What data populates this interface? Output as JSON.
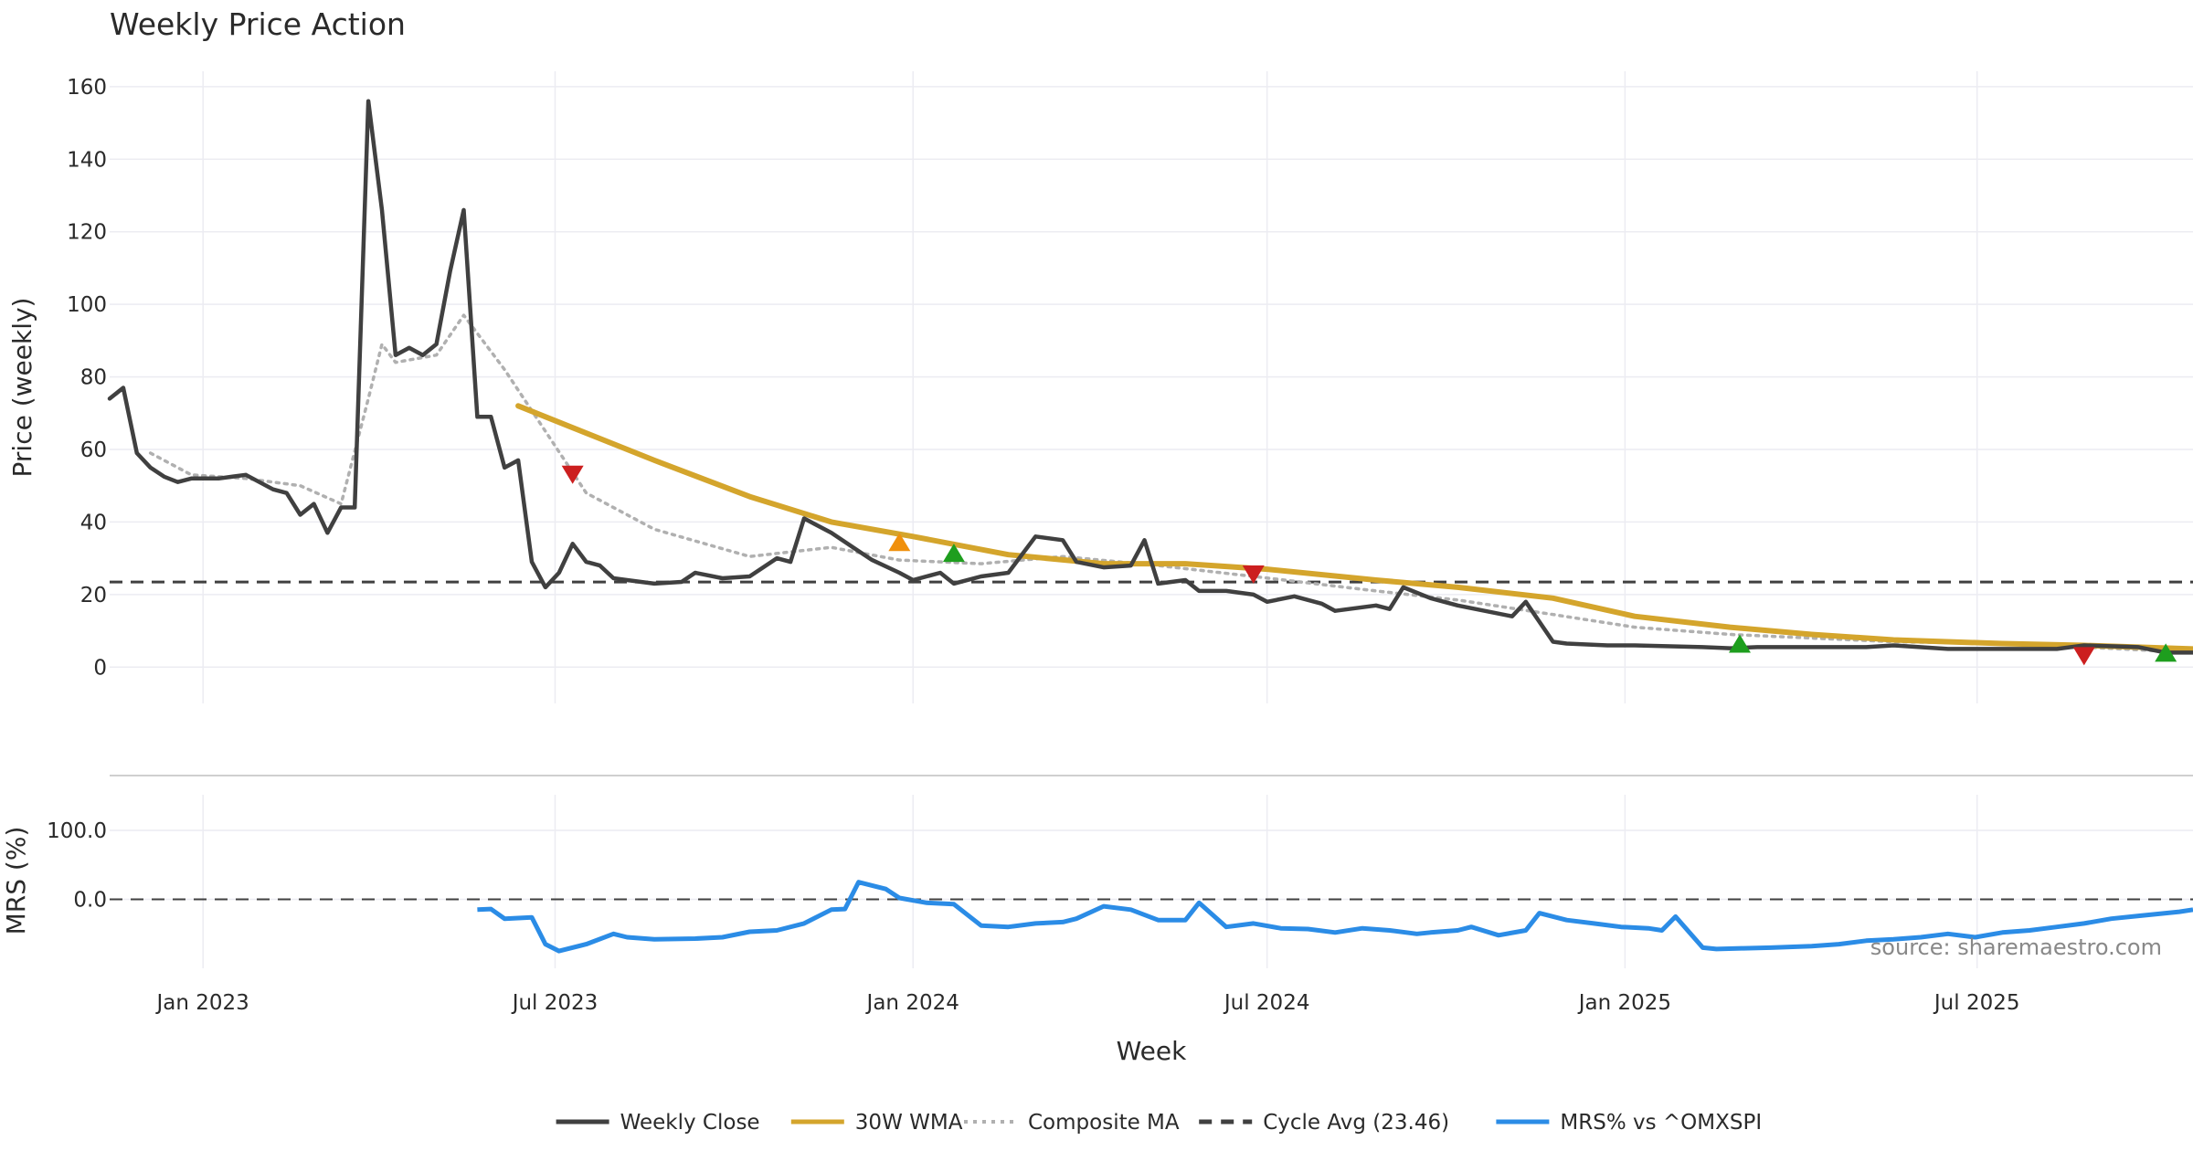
{
  "chart_data": {
    "type": "line",
    "title": "Weekly Price Action",
    "xlabel": "Week",
    "source": "source: sharemaestro.com",
    "x_ticks": [
      "Jan 2023",
      "Jul 2023",
      "Jan 2024",
      "Jul 2024",
      "Jan 2025",
      "Jul 2025"
    ],
    "x_start": "2022-11-14",
    "x_end": "2025-10-20",
    "price_panel": {
      "ylabel": "Price (weekly)",
      "ylim": [
        -10,
        165
      ],
      "y_ticks": [
        0,
        20,
        40,
        60,
        80,
        100,
        120,
        140,
        160
      ],
      "cycle_avg": 23.46
    },
    "mrs_panel": {
      "ylabel": "MRS (%)",
      "ylim": [
        -100,
        165
      ],
      "y_ticks": [
        "0.0",
        "100.0"
      ],
      "y_tick_values": [
        0,
        100
      ]
    },
    "legend": [
      {
        "label": "Weekly Close",
        "color": "#404040",
        "style": "solid"
      },
      {
        "label": "30W WMA",
        "color": "#d4a52c",
        "style": "solid"
      },
      {
        "label": "Composite MA",
        "color": "#b0b0b0",
        "style": "dotted"
      },
      {
        "label": "Cycle Avg (23.46)",
        "color": "#404040",
        "style": "dashed"
      },
      {
        "label": "MRS% vs ^OMXSPI",
        "color": "#2b8ce6",
        "style": "solid"
      }
    ],
    "series": [
      {
        "name": "Weekly Close",
        "color": "#404040",
        "points": [
          [
            "2022-11-14",
            74
          ],
          [
            "2022-11-21",
            77
          ],
          [
            "2022-11-28",
            59
          ],
          [
            "2022-12-05",
            55
          ],
          [
            "2022-12-12",
            52.5
          ],
          [
            "2022-12-19",
            51
          ],
          [
            "2022-12-26",
            52
          ],
          [
            "2023-01-09",
            52
          ],
          [
            "2023-01-23",
            53
          ],
          [
            "2023-02-06",
            49
          ],
          [
            "2023-02-13",
            48
          ],
          [
            "2023-02-20",
            42
          ],
          [
            "2023-02-27",
            45
          ],
          [
            "2023-03-06",
            37
          ],
          [
            "2023-03-13",
            44
          ],
          [
            "2023-03-20",
            44
          ],
          [
            "2023-03-27",
            156
          ],
          [
            "2023-04-03",
            126
          ],
          [
            "2023-04-10",
            86
          ],
          [
            "2023-04-17",
            88
          ],
          [
            "2023-04-24",
            86
          ],
          [
            "2023-05-01",
            89
          ],
          [
            "2023-05-08",
            109
          ],
          [
            "2023-05-15",
            126
          ],
          [
            "2023-05-22",
            69
          ],
          [
            "2023-05-29",
            69
          ],
          [
            "2023-06-05",
            55
          ],
          [
            "2023-06-12",
            57
          ],
          [
            "2023-06-19",
            29
          ],
          [
            "2023-06-26",
            22
          ],
          [
            "2023-07-03",
            26
          ],
          [
            "2023-07-10",
            34
          ],
          [
            "2023-07-17",
            29
          ],
          [
            "2023-07-24",
            28
          ],
          [
            "2023-07-31",
            24.5
          ],
          [
            "2023-08-07",
            24
          ],
          [
            "2023-08-21",
            23
          ],
          [
            "2023-09-04",
            23.5
          ],
          [
            "2023-09-11",
            26
          ],
          [
            "2023-09-25",
            24.5
          ],
          [
            "2023-10-09",
            25
          ],
          [
            "2023-10-23",
            30
          ],
          [
            "2023-10-30",
            29
          ],
          [
            "2023-11-06",
            41
          ],
          [
            "2023-11-20",
            37
          ],
          [
            "2023-12-04",
            32
          ],
          [
            "2023-12-11",
            29.5
          ],
          [
            "2023-12-25",
            26
          ],
          [
            "2024-01-01",
            24
          ],
          [
            "2024-01-15",
            26
          ],
          [
            "2024-01-22",
            23
          ],
          [
            "2024-02-05",
            25
          ],
          [
            "2024-02-19",
            26
          ],
          [
            "2024-03-04",
            36
          ],
          [
            "2024-03-18",
            35
          ],
          [
            "2024-03-25",
            29
          ],
          [
            "2024-04-08",
            27.5
          ],
          [
            "2024-04-22",
            28
          ],
          [
            "2024-04-29",
            35
          ],
          [
            "2024-05-06",
            23
          ],
          [
            "2024-05-20",
            24
          ],
          [
            "2024-05-27",
            21
          ],
          [
            "2024-06-10",
            21
          ],
          [
            "2024-06-24",
            20
          ],
          [
            "2024-07-01",
            18
          ],
          [
            "2024-07-15",
            19.5
          ],
          [
            "2024-07-29",
            17.5
          ],
          [
            "2024-08-05",
            15.5
          ],
          [
            "2024-08-26",
            17
          ],
          [
            "2024-09-02",
            16
          ],
          [
            "2024-09-09",
            22
          ],
          [
            "2024-09-23",
            19
          ],
          [
            "2024-10-07",
            17
          ],
          [
            "2024-11-04",
            14
          ],
          [
            "2024-11-11",
            18
          ],
          [
            "2024-11-25",
            7
          ],
          [
            "2024-12-02",
            6.5
          ],
          [
            "2024-12-23",
            6
          ],
          [
            "2025-01-06",
            6
          ],
          [
            "2025-02-10",
            5.5
          ],
          [
            "2025-02-24",
            5.2
          ],
          [
            "2025-03-10",
            5.5
          ],
          [
            "2025-04-07",
            5.5
          ],
          [
            "2025-05-05",
            5.5
          ],
          [
            "2025-05-19",
            6
          ],
          [
            "2025-06-16",
            5
          ],
          [
            "2025-07-14",
            5
          ],
          [
            "2025-08-11",
            5
          ],
          [
            "2025-08-25",
            6
          ],
          [
            "2025-09-22",
            5.5
          ],
          [
            "2025-10-06",
            4
          ],
          [
            "2025-10-20",
            4
          ]
        ]
      },
      {
        "name": "30W WMA",
        "color": "#d4a52c",
        "points": [
          [
            "2023-06-12",
            72
          ],
          [
            "2023-07-10",
            66
          ],
          [
            "2023-08-21",
            57
          ],
          [
            "2023-10-09",
            47
          ],
          [
            "2023-11-20",
            40
          ],
          [
            "2024-01-01",
            36
          ],
          [
            "2024-02-19",
            31
          ],
          [
            "2024-04-08",
            28.5
          ],
          [
            "2024-05-20",
            28.5
          ],
          [
            "2024-07-01",
            27
          ],
          [
            "2024-08-26",
            24
          ],
          [
            "2024-10-07",
            22
          ],
          [
            "2024-11-25",
            19
          ],
          [
            "2025-01-06",
            14
          ],
          [
            "2025-02-24",
            11
          ],
          [
            "2025-04-07",
            9
          ],
          [
            "2025-05-19",
            7.5
          ],
          [
            "2025-07-14",
            6.5
          ],
          [
            "2025-08-25",
            6
          ],
          [
            "2025-10-20",
            5
          ]
        ]
      },
      {
        "name": "Composite MA",
        "color": "#b0b0b0",
        "points": [
          [
            "2022-12-05",
            59
          ],
          [
            "2022-12-26",
            53
          ],
          [
            "2023-01-23",
            52
          ],
          [
            "2023-02-20",
            50
          ],
          [
            "2023-03-13",
            45
          ],
          [
            "2023-03-27",
            74
          ],
          [
            "2023-04-03",
            89
          ],
          [
            "2023-04-10",
            84
          ],
          [
            "2023-05-01",
            86
          ],
          [
            "2023-05-15",
            97
          ],
          [
            "2023-06-05",
            82
          ],
          [
            "2023-06-26",
            65
          ],
          [
            "2023-07-17",
            48
          ],
          [
            "2023-08-21",
            38
          ],
          [
            "2023-10-09",
            30.5
          ],
          [
            "2023-11-20",
            33
          ],
          [
            "2023-12-25",
            29.5
          ],
          [
            "2024-02-05",
            28.5
          ],
          [
            "2024-03-18",
            30.5
          ],
          [
            "2024-05-06",
            28
          ],
          [
            "2024-06-24",
            25
          ],
          [
            "2024-08-26",
            21
          ],
          [
            "2024-10-07",
            18.5
          ],
          [
            "2024-11-25",
            14.5
          ],
          [
            "2025-01-06",
            11
          ],
          [
            "2025-02-24",
            9
          ],
          [
            "2025-04-07",
            8
          ],
          [
            "2025-05-19",
            7
          ],
          [
            "2025-07-14",
            6.5
          ],
          [
            "2025-08-25",
            5.5
          ],
          [
            "2025-10-20",
            4
          ]
        ]
      }
    ],
    "signals": [
      {
        "date": "2023-07-10",
        "value": 53,
        "direction": "down",
        "color": "#cc1f1f"
      },
      {
        "date": "2023-12-25",
        "value": 34.5,
        "direction": "up",
        "color": "#f0900c"
      },
      {
        "date": "2024-01-22",
        "value": 31.5,
        "direction": "up",
        "color": "#1e9e1e"
      },
      {
        "date": "2024-06-24",
        "value": 25.5,
        "direction": "down",
        "color": "#cc1f1f"
      },
      {
        "date": "2025-03-01",
        "value": 6.5,
        "direction": "up",
        "color": "#1e9e1e"
      },
      {
        "date": "2025-08-25",
        "value": 3,
        "direction": "down",
        "color": "#cc1f1f"
      },
      {
        "date": "2025-10-06",
        "value": 4,
        "direction": "up",
        "color": "#1e9e1e"
      }
    ],
    "mrs_series": {
      "name": "MRS% vs ^OMXSPI",
      "color": "#2b8ce6",
      "points": [
        [
          "2023-05-22",
          -15
        ],
        [
          "2023-05-29",
          -14
        ],
        [
          "2023-06-05",
          -28
        ],
        [
          "2023-06-19",
          -26
        ],
        [
          "2023-06-26",
          -65
        ],
        [
          "2023-07-03",
          -75
        ],
        [
          "2023-07-17",
          -65
        ],
        [
          "2023-07-31",
          -50
        ],
        [
          "2023-08-07",
          -55
        ],
        [
          "2023-08-21",
          -58
        ],
        [
          "2023-09-11",
          -57
        ],
        [
          "2023-09-25",
          -55
        ],
        [
          "2023-10-09",
          -47
        ],
        [
          "2023-10-23",
          -45
        ],
        [
          "2023-11-06",
          -35
        ],
        [
          "2023-11-20",
          -15
        ],
        [
          "2023-11-27",
          -14
        ],
        [
          "2023-12-04",
          25
        ],
        [
          "2023-12-18",
          15
        ],
        [
          "2023-12-25",
          2
        ],
        [
          "2024-01-08",
          -5
        ],
        [
          "2024-01-22",
          -7
        ],
        [
          "2024-02-05",
          -38
        ],
        [
          "2024-02-19",
          -40
        ],
        [
          "2024-03-04",
          -35
        ],
        [
          "2024-03-18",
          -33
        ],
        [
          "2024-03-25",
          -28
        ],
        [
          "2024-04-08",
          -10
        ],
        [
          "2024-04-22",
          -15
        ],
        [
          "2024-05-06",
          -30
        ],
        [
          "2024-05-20",
          -30
        ],
        [
          "2024-05-27",
          -5
        ],
        [
          "2024-06-10",
          -40
        ],
        [
          "2024-06-24",
          -35
        ],
        [
          "2024-07-08",
          -42
        ],
        [
          "2024-07-22",
          -43
        ],
        [
          "2024-08-05",
          -48
        ],
        [
          "2024-08-19",
          -42
        ],
        [
          "2024-09-02",
          -45
        ],
        [
          "2024-09-16",
          -50
        ],
        [
          "2024-09-23",
          -48
        ],
        [
          "2024-10-07",
          -45
        ],
        [
          "2024-10-14",
          -40
        ],
        [
          "2024-10-28",
          -52
        ],
        [
          "2024-11-11",
          -45
        ],
        [
          "2024-11-18",
          -20
        ],
        [
          "2024-12-02",
          -30
        ],
        [
          "2024-12-16",
          -35
        ],
        [
          "2024-12-30",
          -40
        ],
        [
          "2025-01-13",
          -42
        ],
        [
          "2025-01-20",
          -45
        ],
        [
          "2025-01-27",
          -25
        ],
        [
          "2025-02-10",
          -70
        ],
        [
          "2025-02-17",
          -72
        ],
        [
          "2025-03-03",
          -71
        ],
        [
          "2025-03-17",
          -70
        ],
        [
          "2025-04-07",
          -68
        ],
        [
          "2025-04-21",
          -65
        ],
        [
          "2025-05-05",
          -60
        ],
        [
          "2025-05-19",
          -58
        ],
        [
          "2025-06-02",
          -55
        ],
        [
          "2025-06-16",
          -50
        ],
        [
          "2025-06-30",
          -55
        ],
        [
          "2025-07-14",
          -48
        ],
        [
          "2025-07-28",
          -45
        ],
        [
          "2025-08-11",
          -40
        ],
        [
          "2025-08-25",
          -35
        ],
        [
          "2025-09-08",
          -28
        ],
        [
          "2025-09-22",
          -24
        ],
        [
          "2025-10-06",
          -20
        ],
        [
          "2025-10-13",
          -18
        ],
        [
          "2025-10-20",
          -15
        ]
      ]
    }
  }
}
